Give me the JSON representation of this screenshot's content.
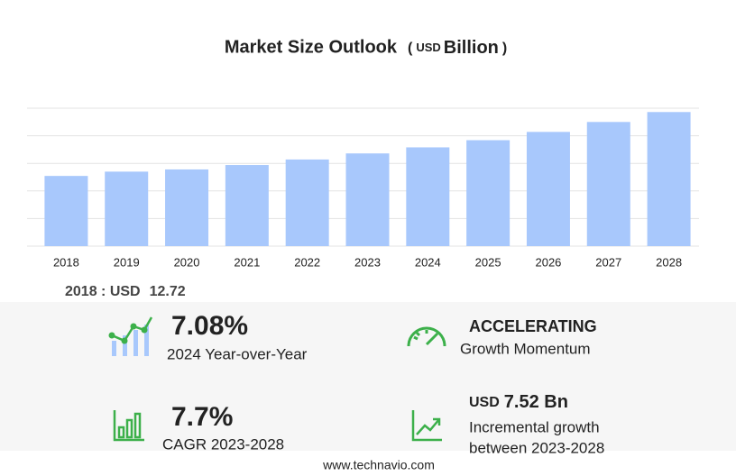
{
  "chart_data": {
    "type": "bar",
    "title": "Market Size Outlook",
    "title_unit": {
      "open": "(",
      "currency": "USD",
      "scale": "Billion",
      "close": ")"
    },
    "categories": [
      "2018",
      "2019",
      "2020",
      "2021",
      "2022",
      "2023",
      "2024",
      "2025",
      "2026",
      "2027",
      "2028"
    ],
    "values": [
      12.72,
      13.5,
      13.9,
      14.7,
      15.7,
      16.8,
      17.9,
      19.2,
      20.7,
      22.5,
      24.3
    ],
    "color": "#a8c8fc",
    "ylim": [
      0,
      25
    ],
    "yticks": [
      0,
      5,
      10,
      15,
      20,
      25
    ],
    "grid": true
  },
  "summary": {
    "label": "2018 : USD",
    "value": "12.72"
  },
  "stats": [
    {
      "value": "7.08%",
      "label": "2024 Year-over-Year"
    },
    {
      "value": "ACCELERATING",
      "label": "Growth Momentum"
    },
    {
      "value": "7.7%",
      "label": "CAGR 2023-2028"
    },
    {
      "currency": "USD",
      "value": "7.52 Bn",
      "label": "Incremental growth",
      "label2": "between 2023-2028"
    }
  ],
  "footer": "www.technavio.com"
}
